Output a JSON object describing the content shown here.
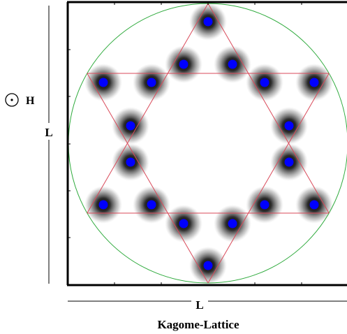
{
  "diagram": {
    "side_label_vertical": "L",
    "side_label_horizontal": "L",
    "field_symbol": "⊙",
    "field_label": "H",
    "caption": "Kagome-Lattice"
  },
  "colors": {
    "frame": "#000000",
    "circle": "#2eaa3c",
    "star": "#d94a5a",
    "dot_core": "#0000ff",
    "halo": "#7f7f7f"
  },
  "lattice": {
    "site_count": 18
  }
}
